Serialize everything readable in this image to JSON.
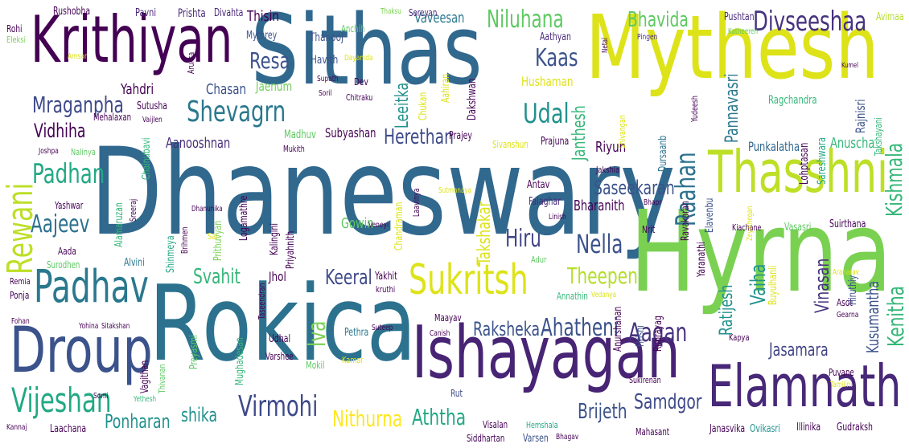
{
  "palette": {
    "c1": "#440154",
    "c2": "#3b528b",
    "c3": "#21918c",
    "c4": "#5ec962",
    "c5": "#fde725",
    "c6": "#2c728e",
    "c7": "#31688e",
    "c8": "#b5de2b",
    "c9": "#35b779"
  },
  "words": [
    {
      "text": "Dhaneswary",
      "color": "#31688e",
      "rot": 0
    },
    {
      "text": "Sithas",
      "color": "#31688e",
      "rot": 0
    },
    {
      "text": "Mythesh",
      "color": "#dde318",
      "rot": 0
    },
    {
      "text": "Rokica",
      "color": "#2c728e",
      "rot": 0
    },
    {
      "text": "Hyrna",
      "color": "#7ad151",
      "rot": 0
    },
    {
      "text": "Krithiyan",
      "color": "#440154",
      "rot": 0
    },
    {
      "text": "Ishayagan",
      "color": "#482475",
      "rot": 0
    },
    {
      "text": "Droup",
      "color": "#3b528b",
      "rot": 0
    },
    {
      "text": "Elamnath",
      "color": "#482878",
      "rot": 0
    },
    {
      "text": "Thasshni",
      "color": "#bddf26",
      "rot": 0
    },
    {
      "text": "Padhav",
      "color": "#2a788e",
      "rot": 0
    },
    {
      "text": "Sukritsh",
      "color": "#dde318",
      "rot": 0
    },
    {
      "text": "Rewani",
      "color": "#bddf26",
      "rot": -90
    },
    {
      "text": "Vijeshan",
      "color": "#22a884",
      "rot": 0
    },
    {
      "text": "Divseeshaa",
      "color": "#46337e",
      "rot": 0
    },
    {
      "text": "Shevagrn",
      "color": "#2a788e",
      "rot": 0
    },
    {
      "text": "Virmohi",
      "color": "#3e4a89",
      "rot": 0
    },
    {
      "text": "Niluhana",
      "color": "#5ec962",
      "rot": 0
    },
    {
      "text": "Bhavida",
      "color": "#5ec962",
      "rot": 0
    },
    {
      "text": "Aaqan",
      "color": "#46327e",
      "rot": 0
    },
    {
      "text": "Raahan",
      "color": "#2c728e",
      "rot": -90
    },
    {
      "text": "Udal",
      "color": "#21918c",
      "rot": 0
    },
    {
      "text": "Kaas",
      "color": "#3b528b",
      "rot": 0
    },
    {
      "text": "Resa",
      "color": "#3b528b",
      "rot": 0
    },
    {
      "text": "Padhan",
      "color": "#22a884",
      "rot": 0
    },
    {
      "text": "Aajeev",
      "color": "#2c728e",
      "rot": 0
    },
    {
      "text": "Ahatheni",
      "color": "#3b528b",
      "rot": 0
    },
    {
      "text": "Nella",
      "color": "#3b528b",
      "rot": 0
    },
    {
      "text": "Hiru",
      "color": "#414487",
      "rot": 0
    },
    {
      "text": "Theepen",
      "color": "#b5de2b",
      "rot": 0
    },
    {
      "text": "Keeral",
      "color": "#3e4a89",
      "rot": 0
    },
    {
      "text": "Mraganpha",
      "color": "#3e4a89",
      "rot": 0
    },
    {
      "text": "Vidhiha",
      "color": "#440154",
      "rot": 0
    },
    {
      "text": "Saseekaran",
      "color": "#3b528b",
      "rot": 0
    },
    {
      "text": "Herethan",
      "color": "#3e4a89",
      "rot": 0
    },
    {
      "text": "Raksheka",
      "color": "#3b528b",
      "rot": 0
    },
    {
      "text": "Samdgor",
      "color": "#3e4a89",
      "rot": 0
    },
    {
      "text": "Brijeth",
      "color": "#3b528b",
      "rot": 0
    },
    {
      "text": "Aththa",
      "color": "#22a884",
      "rot": 0
    },
    {
      "text": "Nithurna",
      "color": "#fde725",
      "rot": 0
    },
    {
      "text": "Ponharan",
      "color": "#21918c",
      "rot": 0
    },
    {
      "text": "shika",
      "color": "#21918c",
      "rot": 0
    },
    {
      "text": "Jasamara",
      "color": "#414487",
      "rot": 0
    },
    {
      "text": "Kenitha",
      "color": "#35b779",
      "rot": -90
    },
    {
      "text": "Kishmala",
      "color": "#35b779",
      "rot": -90
    },
    {
      "text": "Vaiha",
      "color": "#21918c",
      "rot": -90
    },
    {
      "text": "Iva",
      "color": "#7ad151",
      "rot": -90
    },
    {
      "text": "Svahit",
      "color": "#35b779",
      "rot": 0
    },
    {
      "text": "Janthesh",
      "color": "#35b779",
      "rot": -90
    },
    {
      "text": "Leeitka",
      "color": "#21918c",
      "rot": -90
    },
    {
      "text": "Takshakar",
      "color": "#dde318",
      "rot": -90
    },
    {
      "text": "Vinasan",
      "color": "#46337e",
      "rot": -90
    },
    {
      "text": "Kusumantha",
      "color": "#3b528b",
      "rot": -90
    },
    {
      "text": "Pannavasri",
      "color": "#2a788e",
      "rot": -90
    },
    {
      "text": "Ratijesh",
      "color": "#21918c",
      "rot": -90
    },
    {
      "text": "Subyashan",
      "color": "#440154",
      "rot": 0
    },
    {
      "text": "Aanooshnan",
      "color": "#472d7b",
      "rot": 0
    },
    {
      "text": "Chasan",
      "color": "#3b528b",
      "rot": 0
    },
    {
      "text": "Jaenum",
      "color": "#6ece58",
      "rot": 0
    },
    {
      "text": "Yahdri",
      "color": "#440154",
      "rot": 0
    },
    {
      "text": "Bharanith",
      "color": "#440154",
      "rot": 0
    },
    {
      "text": "Riyun",
      "color": "#440154",
      "rot": 0
    },
    {
      "text": "Anuscha",
      "color": "#35b779",
      "rot": 0
    },
    {
      "text": "Punkalatha",
      "color": "#31688e",
      "rot": 0
    },
    {
      "text": "Ragchandra",
      "color": "#35b779",
      "rot": 0
    },
    {
      "text": "Hushaman",
      "color": "#dde318",
      "rot": 0
    },
    {
      "text": "Vaveesan",
      "color": "#2a788e",
      "rot": 0
    },
    {
      "text": "Thisin",
      "color": "#440154",
      "rot": 0
    },
    {
      "text": "Thanooj",
      "color": "#3b528b",
      "rot": 0
    },
    {
      "text": "Rushobha",
      "color": "#440154",
      "rot": 0
    },
    {
      "text": "Prishta",
      "color": "#482878",
      "rot": 0
    },
    {
      "text": "Divahta",
      "color": "#482878",
      "rot": 0
    },
    {
      "text": "Mythrey",
      "color": "#3b528b",
      "rot": 0
    },
    {
      "text": "Havith",
      "color": "#3b528b",
      "rot": 0
    },
    {
      "text": "Pavni",
      "color": "#482878",
      "rot": 0
    },
    {
      "text": "Aathyan",
      "color": "#482878",
      "rot": 0
    },
    {
      "text": "Soreyan",
      "color": "#482878",
      "rot": 0
    },
    {
      "text": "Pushtan",
      "color": "#482878",
      "rot": 0
    },
    {
      "text": "Avimaa",
      "color": "#b5de2b",
      "rot": 0
    },
    {
      "text": "Pingen",
      "color": "#472d7b",
      "rot": 0
    },
    {
      "text": "Katheeren",
      "color": "#5ec962",
      "rot": 0
    },
    {
      "text": "Rohi",
      "color": "#440154",
      "rot": 0
    },
    {
      "text": "Eleksi",
      "color": "#7ad151",
      "rot": 0
    },
    {
      "text": "Amsar",
      "color": "#dde318",
      "rot": 0
    },
    {
      "text": "Mehalaxan",
      "color": "#440154",
      "rot": 0
    },
    {
      "text": "Sutusha",
      "color": "#440154",
      "rot": 0
    },
    {
      "text": "Joshpa",
      "color": "#440154",
      "rot": 0
    },
    {
      "text": "Nalinya",
      "color": "#5ec962",
      "rot": 0
    },
    {
      "text": "Yashwar",
      "color": "#440154",
      "rot": 0
    },
    {
      "text": "Aada",
      "color": "#440154",
      "rot": 0
    },
    {
      "text": "Surodhen",
      "color": "#5ec962",
      "rot": 0
    },
    {
      "text": "Remia",
      "color": "#440154",
      "rot": 0
    },
    {
      "text": "Ponja",
      "color": "#440154",
      "rot": 0
    },
    {
      "text": "Alvini",
      "color": "#2a788e",
      "rot": 0
    },
    {
      "text": "Madhuv",
      "color": "#5ec962",
      "rot": 0
    },
    {
      "text": "Mukith",
      "color": "#440154",
      "rot": 0
    },
    {
      "text": "Prajey",
      "color": "#440154",
      "rot": 0
    },
    {
      "text": "Prajuna",
      "color": "#440154",
      "rot": 0
    },
    {
      "text": "Sivanshun",
      "color": "#dde318",
      "rot": 0
    },
    {
      "text": "Dayanida",
      "color": "#dde318",
      "rot": 0
    },
    {
      "text": "Supath",
      "color": "#440154",
      "rot": 0
    },
    {
      "text": "Soril",
      "color": "#440154",
      "rot": 0
    },
    {
      "text": "Chitraku",
      "color": "#440154",
      "rot": 0
    },
    {
      "text": "Dev",
      "color": "#440154",
      "rot": 0
    },
    {
      "text": "Anchih",
      "color": "#5ec962",
      "rot": 0
    },
    {
      "text": "Thaksu",
      "color": "#7ad151",
      "rot": 0
    },
    {
      "text": "Vaijlen",
      "color": "#440154",
      "rot": 0
    },
    {
      "text": "Dhanunika",
      "color": "#440154",
      "rot": 0
    },
    {
      "text": "Sai",
      "color": "#dde318",
      "rot": 0
    },
    {
      "text": "Gowin",
      "color": "#5ec962",
      "rot": 0
    },
    {
      "text": "Veneyi",
      "color": "#440154",
      "rot": 0
    },
    {
      "text": "Antav",
      "color": "#440154",
      "rot": 0
    },
    {
      "text": "Falaghar",
      "color": "#482878",
      "rot": 0
    },
    {
      "text": "Linish",
      "color": "#440154",
      "rot": 0
    },
    {
      "text": "Sutmanaya",
      "color": "#dde318",
      "rot": 0
    },
    {
      "text": "Jakshia",
      "color": "#440154",
      "rot": 0
    },
    {
      "text": "Bhapr",
      "color": "#440154",
      "rot": 0
    },
    {
      "text": "Nrit",
      "color": "#440154",
      "rot": 0
    },
    {
      "text": "Adur",
      "color": "#5ec962",
      "rot": 0
    },
    {
      "text": "Yakhit",
      "color": "#440154",
      "rot": 0
    },
    {
      "text": "kruthi",
      "color": "#440154",
      "rot": 0
    },
    {
      "text": "Annathin",
      "color": "#35b779",
      "rot": 0
    },
    {
      "text": "Maayav",
      "color": "#440154",
      "rot": 0
    },
    {
      "text": "Suteep",
      "color": "#440154",
      "rot": 0
    },
    {
      "text": "Pethra",
      "color": "#2a788e",
      "rot": 0
    },
    {
      "text": "Canish",
      "color": "#440154",
      "rot": 0
    },
    {
      "text": "Jhol",
      "color": "#440154",
      "rot": 0
    },
    {
      "text": "Udhal",
      "color": "#440154",
      "rot": 0
    },
    {
      "text": "Varshee",
      "color": "#440154",
      "rot": 0
    },
    {
      "text": "Mokil",
      "color": "#5ec962",
      "rot": 0
    },
    {
      "text": "Kamar",
      "color": "#dde318",
      "rot": 0
    },
    {
      "text": "Vedanya",
      "color": "#dde318",
      "rot": 0
    },
    {
      "text": "Asot",
      "color": "#440154",
      "rot": 0
    },
    {
      "text": "Gearna",
      "color": "#440154",
      "rot": 0
    },
    {
      "text": "Kapya",
      "color": "#440154",
      "rot": 0
    },
    {
      "text": "Puvane",
      "color": "#440154",
      "rot": 0
    },
    {
      "text": "Tamilini",
      "color": "#dde318",
      "rot": 0
    },
    {
      "text": "Sukirenan",
      "color": "#440154",
      "rot": 0
    },
    {
      "text": "Kiachane",
      "color": "#440154",
      "rot": 0
    },
    {
      "text": "Vasasri",
      "color": "#5ec962",
      "rot": 0
    },
    {
      "text": "Suirthana",
      "color": "#440154",
      "rot": 0
    },
    {
      "text": "Aranarav",
      "color": "#dde318",
      "rot": 0
    },
    {
      "text": "Visalan",
      "color": "#440154",
      "rot": 0
    },
    {
      "text": "Hemshala",
      "color": "#22a884",
      "rot": 0
    },
    {
      "text": "Siddhartan",
      "color": "#440154",
      "rot": 0
    },
    {
      "text": "Varsen",
      "color": "#3b528b",
      "rot": 0
    },
    {
      "text": "Bhagav",
      "color": "#440154",
      "rot": 0
    },
    {
      "text": "Mahasant",
      "color": "#440154",
      "rot": 0
    },
    {
      "text": "Janasvika",
      "color": "#440154",
      "rot": 0
    },
    {
      "text": "Ovikasri",
      "color": "#21918c",
      "rot": 0
    },
    {
      "text": "Illinika",
      "color": "#440154",
      "rot": 0
    },
    {
      "text": "Gudraksh",
      "color": "#440154",
      "rot": 0
    },
    {
      "text": "Laachana",
      "color": "#440154",
      "rot": 0
    },
    {
      "text": "Kannaj",
      "color": "#440154",
      "rot": 0
    },
    {
      "text": "Somi",
      "color": "#440154",
      "rot": 0
    },
    {
      "text": "Yethesh",
      "color": "#35b779",
      "rot": 0
    },
    {
      "text": "Rut",
      "color": "#3e4a89",
      "rot": 0
    },
    {
      "text": "Yohina",
      "color": "#440154",
      "rot": 0
    },
    {
      "text": "Sitakshan",
      "color": "#440154",
      "rot": 0
    },
    {
      "text": "Fohan",
      "color": "#440154",
      "rot": 0
    },
    {
      "text": "Dakshwan",
      "color": "#440154",
      "rot": -90
    },
    {
      "text": "Aahiran",
      "color": "#dde318",
      "rot": -90
    },
    {
      "text": "Chukan",
      "color": "#dde318",
      "rot": -90
    },
    {
      "text": "Shivangan",
      "color": "#dde318",
      "rot": -90
    },
    {
      "text": "Yudeesh",
      "color": "#440154",
      "rot": -90
    },
    {
      "text": "Dursaanb",
      "color": "#2c728e",
      "rot": -90
    },
    {
      "text": "Lohptasan",
      "color": "#440154",
      "rot": -90
    },
    {
      "text": "Sareshwara",
      "color": "#22a884",
      "rot": -90
    },
    {
      "text": "Rajnisri",
      "color": "#3b528b",
      "rot": -90
    },
    {
      "text": "Takshayani",
      "color": "#35b779",
      "rot": -90
    },
    {
      "text": "Kumel",
      "color": "#440154",
      "rot": 0
    },
    {
      "text": "Netal",
      "color": "#440154",
      "rot": -90
    },
    {
      "text": "Aruksa",
      "color": "#440154",
      "rot": -90
    },
    {
      "text": "Preyasmi",
      "color": "#5ec962",
      "rot": -90
    },
    {
      "text": "Mughadesan",
      "color": "#35b779",
      "rot": -90
    },
    {
      "text": "Vagithan",
      "color": "#440154",
      "rot": -90
    },
    {
      "text": "Thivanan",
      "color": "#5ec962",
      "rot": -90
    },
    {
      "text": "Chainubavi",
      "color": "#35b779",
      "rot": -90
    },
    {
      "text": "Alamaruzan",
      "color": "#35b779",
      "rot": -90
    },
    {
      "text": "Sreeraj",
      "color": "#440154",
      "rot": -90
    },
    {
      "text": "Shinmeya",
      "color": "#22a884",
      "rot": -90
    },
    {
      "text": "Brihmen",
      "color": "#440154",
      "rot": -90
    },
    {
      "text": "Prithuvyan",
      "color": "#7ad151",
      "rot": -90
    },
    {
      "text": "Logamathre",
      "color": "#440154",
      "rot": -90
    },
    {
      "text": "Kalingini",
      "color": "#440154",
      "rot": -90
    },
    {
      "text": "Priyahnith",
      "color": "#440154",
      "rot": -90
    },
    {
      "text": "Taseendran",
      "color": "#440154",
      "rot": -90
    },
    {
      "text": "Chandraman",
      "color": "#dde318",
      "rot": -90
    },
    {
      "text": "Laavinya",
      "color": "#440154",
      "rot": -90
    },
    {
      "text": "Anurshanan",
      "color": "#440154",
      "rot": -90
    },
    {
      "text": "Hrisni",
      "color": "#3b528b",
      "rot": -90
    },
    {
      "text": "Ruprayag",
      "color": "#440154",
      "rot": -90
    },
    {
      "text": "Ravakaran",
      "color": "#440154",
      "rot": -90
    },
    {
      "text": "Yaranathi",
      "color": "#440154",
      "rot": -90
    },
    {
      "text": "Elavenbu",
      "color": "#3b528b",
      "rot": -90
    },
    {
      "text": "Buyulhanli",
      "color": "#dde318",
      "rot": -90
    },
    {
      "text": "Hiruthiy",
      "color": "#3b528b",
      "rot": -90
    },
    {
      "text": "Zeyathegan",
      "color": "#dde318",
      "rot": -90
    }
  ]
}
